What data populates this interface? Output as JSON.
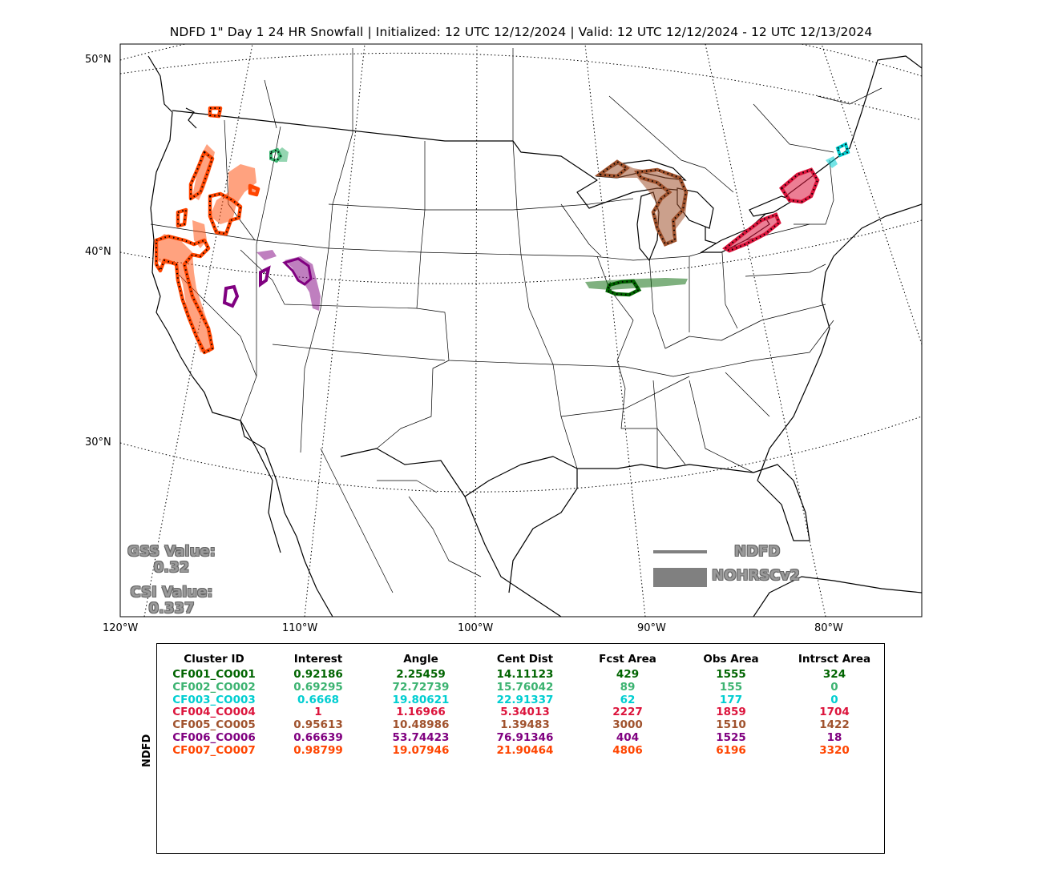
{
  "title": "NDFD 1\" Day 1 24 HR Snowfall | Initialized: 12 UTC 12/12/2024 | Valid: 12 UTC 12/12/2024 - 12 UTC 12/13/2024",
  "lat_labels": [
    "50°N",
    "40°N",
    "30°N"
  ],
  "lon_labels": [
    "120°W",
    "110°W",
    "100°W",
    "90°W",
    "80°W"
  ],
  "stats": {
    "gss_label": "GSS Value:",
    "gss_value": "0.32",
    "csi_label": "CSI Value:",
    "csi_value": "0.337"
  },
  "legend": {
    "line_label": "NDFD",
    "fill_label": "NOHRSCv2",
    "color": "#808080"
  },
  "table": {
    "ylabel": "NDFD",
    "headers": [
      "Cluster ID",
      "Interest",
      "Angle",
      "Cent Dist",
      "Fcst Area",
      "Obs Area",
      "Intrsct Area"
    ],
    "rows": [
      {
        "color": "#006400",
        "cells": [
          "CF001_CO001",
          "0.92186",
          "2.25459",
          "14.11123",
          "429",
          "1555",
          "324"
        ]
      },
      {
        "color": "#3cb371",
        "cells": [
          "CF002_CO002",
          "0.69295",
          "72.72739",
          "15.76042",
          "89",
          "155",
          "0"
        ]
      },
      {
        "color": "#00ced1",
        "cells": [
          "CF003_CO003",
          "0.6668",
          "19.80621",
          "22.91337",
          "62",
          "177",
          "0"
        ]
      },
      {
        "color": "#dc143c",
        "cells": [
          "CF004_CO004",
          "1",
          "1.16966",
          "5.34013",
          "2227",
          "1859",
          "1704"
        ]
      },
      {
        "color": "#a0522d",
        "cells": [
          "CF005_CO005",
          "0.95613",
          "10.48986",
          "1.39483",
          "3000",
          "1510",
          "1422"
        ]
      },
      {
        "color": "#800080",
        "cells": [
          "CF006_CO006",
          "0.66639",
          "53.74423",
          "76.91346",
          "404",
          "1525",
          "18"
        ]
      },
      {
        "color": "#ff4500",
        "cells": [
          "CF007_CO007",
          "0.98799",
          "19.07946",
          "21.90464",
          "4806",
          "6196",
          "3320"
        ]
      }
    ]
  }
}
